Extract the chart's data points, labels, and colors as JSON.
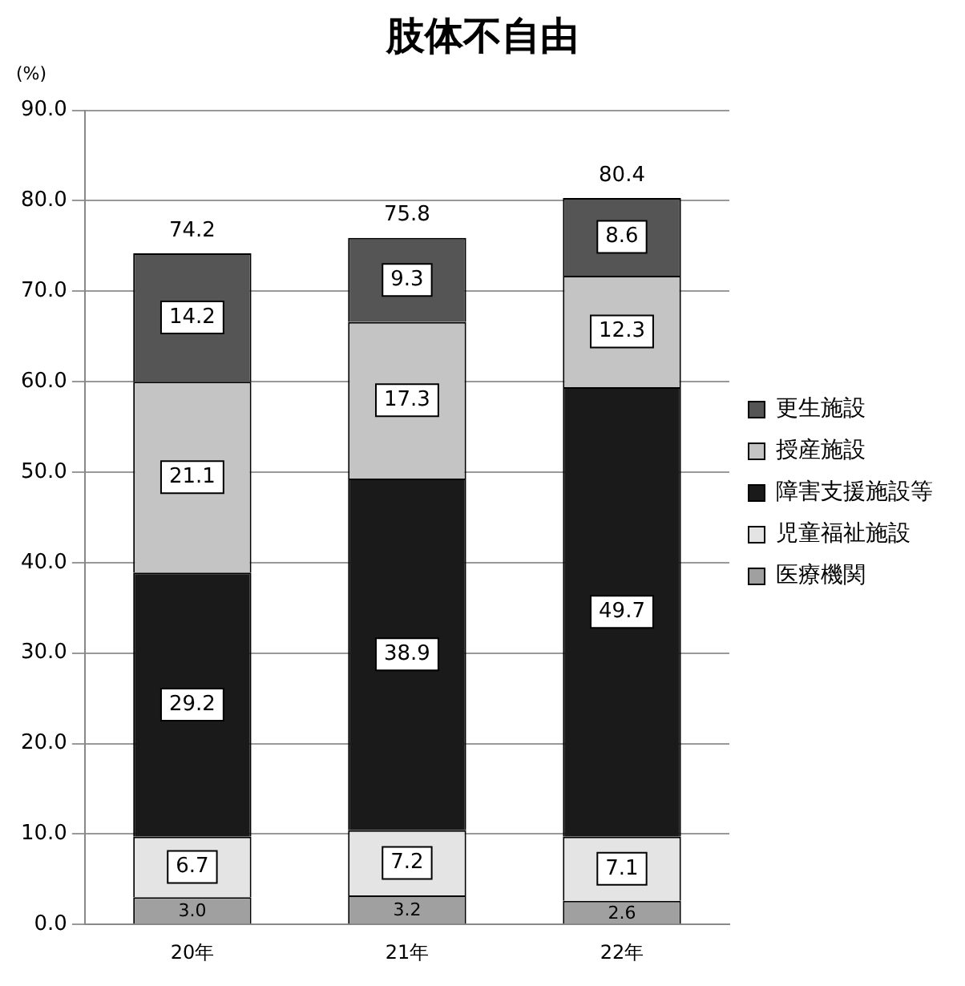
{
  "chart_data": {
    "type": "bar",
    "title": "肢体不自由",
    "ylabel": "(%)",
    "categories": [
      "20年",
      "21年",
      "22年"
    ],
    "stacked": true,
    "series": [
      {
        "name": "医療機関",
        "color": "#a0a0a0",
        "values": [
          3.0,
          3.2,
          2.6
        ],
        "value_labels": [
          "3.0",
          "3.2",
          "2.6"
        ]
      },
      {
        "name": "児童福祉施設",
        "color": "#e4e4e4",
        "values": [
          6.7,
          7.2,
          7.1
        ],
        "value_labels": [
          "6.7",
          "7.2",
          "7.1"
        ]
      },
      {
        "name": "障害支援施設等",
        "color": "#1a1a1a",
        "values": [
          29.2,
          38.9,
          49.7
        ],
        "value_labels": [
          "29.2",
          "38.9",
          "49.7"
        ]
      },
      {
        "name": "授産施設",
        "color": "#c4c4c4",
        "values": [
          21.1,
          17.3,
          12.3
        ],
        "value_labels": [
          "21.1",
          "17.3",
          "12.3"
        ]
      },
      {
        "name": "更生施設",
        "color": "#555555",
        "values": [
          14.2,
          9.3,
          8.6
        ],
        "value_labels": [
          "14.2",
          "9.3",
          "8.6"
        ]
      }
    ],
    "totals": [
      "74.2",
      "75.8",
      "80.4"
    ],
    "ylim": [
      0,
      90
    ],
    "yticks": [
      {
        "value": 0,
        "label": "0.0"
      },
      {
        "value": 10,
        "label": "10.0"
      },
      {
        "value": 20,
        "label": "20.0"
      },
      {
        "value": 30,
        "label": "30.0"
      },
      {
        "value": 40,
        "label": "40.0"
      },
      {
        "value": 50,
        "label": "50.0"
      },
      {
        "value": 60,
        "label": "60.0"
      },
      {
        "value": 70,
        "label": "70.0"
      },
      {
        "value": 80,
        "label": "80.0"
      },
      {
        "value": 90,
        "label": "90.0"
      }
    ],
    "grid": "y",
    "legend": "right"
  }
}
